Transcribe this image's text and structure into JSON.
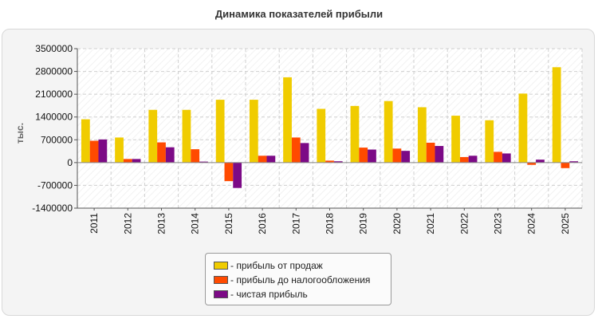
{
  "chart_data": {
    "type": "bar",
    "title": "Динамика показателей прибыли",
    "ylabel": "тыс.",
    "xlabel": "",
    "ylim": [
      -1400000,
      3500000
    ],
    "yticks": [
      3500000,
      2800000,
      2100000,
      1400000,
      700000,
      0,
      -700000,
      -1400000
    ],
    "ytick_labels": [
      "3500000",
      "2800000",
      "2100000",
      "1400000",
      "700000",
      "0",
      "-700000",
      "-1400000"
    ],
    "grid": true,
    "legend_position": "bottom-center",
    "categories": [
      "2011",
      "2012",
      "2013",
      "2014",
      "2015",
      "2016",
      "2017",
      "2018",
      "2019",
      "2020",
      "2021",
      "2022",
      "2023",
      "2024",
      "2025"
    ],
    "series": [
      {
        "name": "- прибыль от продаж",
        "color": "#f0cc00",
        "values": [
          1330000,
          770000,
          1620000,
          1620000,
          1930000,
          1930000,
          2620000,
          1650000,
          1740000,
          1890000,
          1700000,
          1440000,
          1300000,
          2120000,
          2930000
        ]
      },
      {
        "name": "- прибыль до налогообложения",
        "color": "#ff4a00",
        "values": [
          670000,
          110000,
          620000,
          410000,
          -570000,
          210000,
          770000,
          60000,
          460000,
          430000,
          610000,
          170000,
          330000,
          -70000,
          -170000
        ]
      },
      {
        "name": "- чистая прибыль",
        "color": "#7c0a86",
        "values": [
          710000,
          110000,
          470000,
          30000,
          -780000,
          210000,
          600000,
          40000,
          400000,
          360000,
          510000,
          210000,
          280000,
          90000,
          40000
        ]
      }
    ]
  }
}
